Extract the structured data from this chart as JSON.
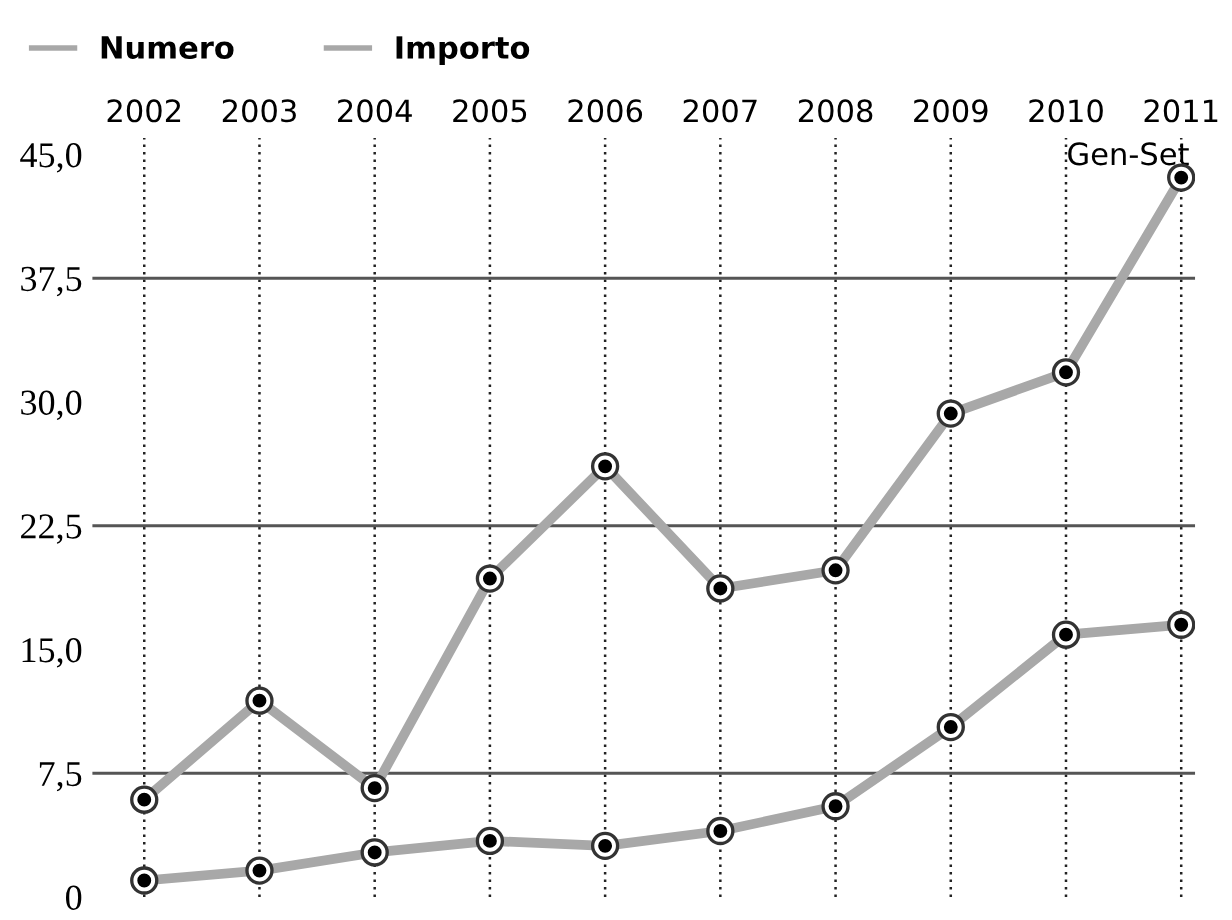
{
  "chart_data": {
    "type": "line",
    "categories": [
      "2002",
      "2003",
      "2004",
      "2005",
      "2006",
      "2007",
      "2008",
      "2009",
      "2010",
      "2011"
    ],
    "series": [
      {
        "name": "Numero",
        "color": "#a8a8a8",
        "values": [
          1.0,
          1.6,
          2.7,
          3.4,
          3.1,
          4.0,
          5.5,
          10.3,
          15.9,
          16.5
        ]
      },
      {
        "name": "Importo",
        "color": "#a8a8a8",
        "values": [
          5.9,
          11.9,
          6.6,
          19.3,
          26.1,
          18.7,
          19.8,
          29.3,
          31.8,
          43.6
        ]
      }
    ],
    "ylim": [
      0,
      46
    ],
    "yticks": [
      {
        "value": 0,
        "label": "0"
      },
      {
        "value": 7.5,
        "label": "7,5"
      },
      {
        "value": 15,
        "label": "15,0"
      },
      {
        "value": 22.5,
        "label": "22,5"
      },
      {
        "value": 30,
        "label": "30,0"
      },
      {
        "value": 37.5,
        "label": "37,5"
      },
      {
        "value": 45,
        "label": "45,0"
      }
    ],
    "ref_lines": [
      {
        "axis": "y",
        "value": 7.5,
        "color": "#555555"
      },
      {
        "axis": "y",
        "value": 22.5,
        "color": "#555555"
      },
      {
        "axis": "y",
        "value": 37.5,
        "color": "#555555"
      }
    ],
    "grid": "x",
    "legend": "top left",
    "marker": "circle",
    "line_style": "solid",
    "annotations": [
      "Gen-Set"
    ]
  }
}
